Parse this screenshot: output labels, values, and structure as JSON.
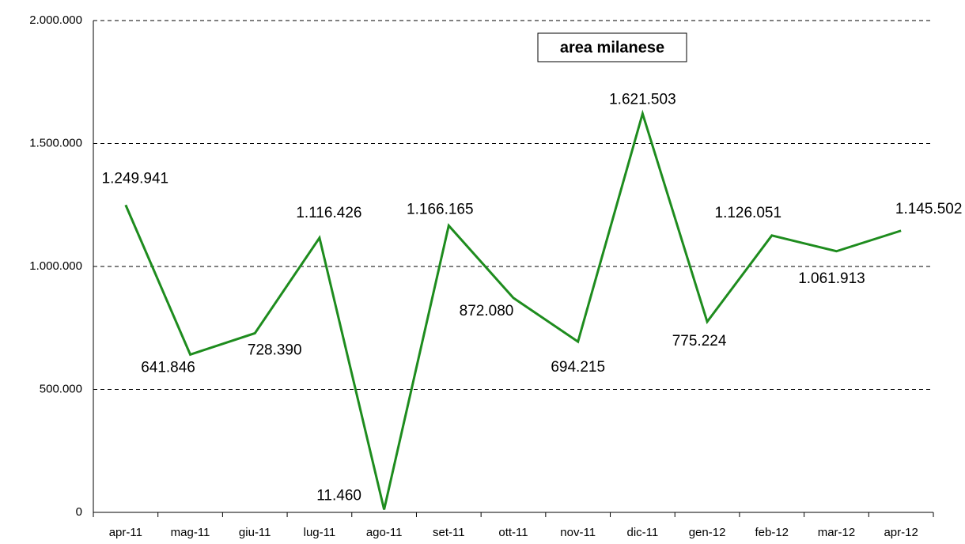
{
  "chart_data": {
    "type": "line",
    "title": "area milanese",
    "categories": [
      "apr-11",
      "mag-11",
      "giu-11",
      "lug-11",
      "ago-11",
      "set-11",
      "ott-11",
      "nov-11",
      "dic-11",
      "gen-12",
      "feb-12",
      "mar-12",
      "apr-12"
    ],
    "series": [
      {
        "name": "area milanese",
        "color": "#1e8c1e",
        "values": [
          1249941,
          641846,
          728390,
          1116426,
          11460,
          1166165,
          872080,
          694215,
          1621503,
          775224,
          1126051,
          1061913,
          1145502
        ],
        "value_labels": [
          "1.249.941",
          "641.846",
          "728.390",
          "1.116.426",
          "11.460",
          "1.166.165",
          "872.080",
          "694.215",
          "1.621.503",
          "775.224",
          "1.126.051",
          "1.061.913",
          "1.145.502"
        ]
      }
    ],
    "ylim": [
      0,
      2000000
    ],
    "yticks": [
      0,
      {
        "value": 500000,
        "label": "500.000"
      },
      {
        "value": 1000000,
        "label": "1.000.000"
      },
      {
        "value": 1500000,
        "label": "1.500.000"
      },
      {
        "value": 2000000,
        "label": "2.000.000"
      }
    ],
    "grid": true
  }
}
